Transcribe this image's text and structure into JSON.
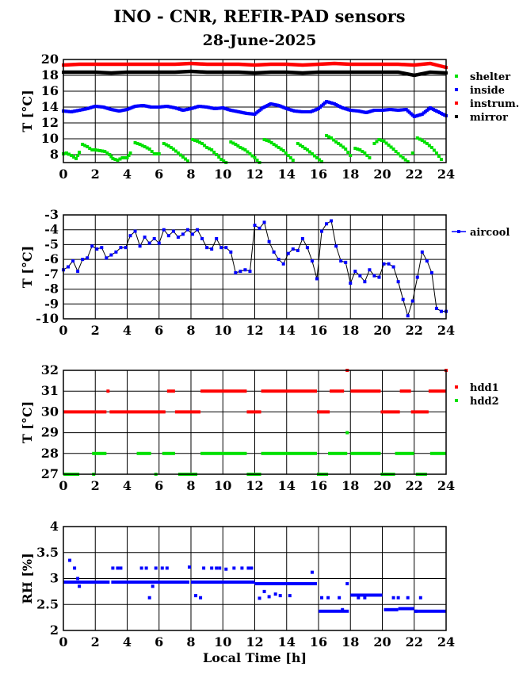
{
  "title": "INO - CNR, REFIR-PAD sensors",
  "subtitle": "28-June-2025",
  "chart_data": [
    {
      "type": "scatter",
      "ylabel": "T [°C]",
      "xlabel": "",
      "xlim": [
        0,
        24
      ],
      "ylim": [
        7,
        20
      ],
      "xticks": [
        0,
        2,
        4,
        6,
        8,
        10,
        12,
        14,
        16,
        18,
        20,
        22,
        24
      ],
      "yticks": [
        8,
        10,
        12,
        14,
        16,
        18,
        20
      ],
      "grid": true,
      "legend": "right",
      "series": [
        {
          "name": "shelter",
          "color": "#00e000",
          "marker": "square",
          "line": false,
          "x": [
            0,
            0.2,
            0.5,
            0.8,
            1.0,
            1.2,
            1.5,
            1.8,
            2.0,
            2.3,
            2.6,
            2.9,
            3.1,
            3.4,
            3.7,
            4.0,
            4.2,
            4.5,
            4.8,
            5.1,
            5.4,
            5.7,
            6.0,
            6.3,
            6.6,
            6.9,
            7.2,
            7.5,
            7.8,
            8.1,
            8.4,
            8.7,
            9.0,
            9.3,
            9.6,
            9.9,
            10.2,
            10.5,
            10.8,
            11.1,
            11.4,
            11.7,
            12.0,
            12.3,
            12.6,
            12.9,
            13.2,
            13.5,
            13.8,
            14.1,
            14.4,
            14.7,
            15.0,
            15.3,
            15.6,
            15.9,
            16.2,
            16.5,
            16.8,
            17.1,
            17.4,
            17.7,
            18.0,
            18.3,
            18.6,
            18.9,
            19.2,
            19.5,
            19.8,
            20.1,
            20.4,
            20.7,
            21.0,
            21.3,
            21.6,
            21.9,
            22.2,
            22.5,
            22.8,
            23.1,
            23.4,
            23.7
          ],
          "y": [
            8.1,
            8.2,
            7.9,
            7.5,
            8.3,
            9.3,
            9.0,
            8.6,
            8.6,
            8.5,
            8.4,
            8.0,
            7.5,
            7.3,
            7.6,
            7.6,
            8.2,
            9.5,
            9.3,
            9.0,
            8.7,
            8.1,
            8.1,
            9.4,
            9.1,
            8.7,
            8.2,
            7.7,
            7.2,
            9.9,
            9.7,
            9.4,
            8.9,
            8.6,
            8.0,
            7.4,
            7.0,
            9.6,
            9.3,
            8.9,
            8.6,
            8.1,
            7.6,
            7.0,
            9.9,
            9.7,
            9.3,
            8.9,
            8.5,
            7.9,
            7.3,
            9.4,
            9.0,
            8.6,
            8.1,
            7.6,
            7.1,
            10.4,
            10.1,
            9.6,
            9.2,
            8.7,
            7.9,
            8.8,
            8.6,
            8.2,
            7.6,
            9.4,
            9.9,
            9.7,
            9.2,
            8.7,
            8.1,
            7.6,
            7.1,
            8.2,
            10.1,
            9.8,
            9.4,
            8.9,
            8.2,
            7.4
          ]
        },
        {
          "name": "inside",
          "color": "#0000ff",
          "marker": "square",
          "line": false,
          "x": [
            0,
            0.5,
            1.0,
            1.5,
            2.0,
            2.5,
            3.0,
            3.5,
            4.0,
            4.5,
            5.0,
            5.5,
            6.0,
            6.5,
            7.0,
            7.5,
            8.0,
            8.5,
            9.0,
            9.5,
            10.0,
            10.5,
            11.0,
            11.5,
            12.0,
            12.5,
            13.0,
            13.5,
            14.0,
            14.5,
            15.0,
            15.5,
            16.0,
            16.5,
            17.0,
            17.5,
            18.0,
            18.5,
            19.0,
            19.5,
            20.0,
            20.5,
            21.0,
            21.5,
            22.0,
            22.5,
            23.0,
            23.5,
            24.0
          ],
          "y": [
            13.5,
            13.4,
            13.6,
            13.8,
            14.1,
            14.0,
            13.7,
            13.5,
            13.7,
            14.1,
            14.2,
            14.0,
            14.0,
            14.1,
            13.9,
            13.6,
            13.8,
            14.1,
            14.0,
            13.8,
            13.9,
            13.6,
            13.4,
            13.2,
            13.1,
            13.9,
            14.4,
            14.2,
            13.8,
            13.5,
            13.4,
            13.4,
            13.8,
            14.7,
            14.4,
            13.9,
            13.6,
            13.5,
            13.3,
            13.6,
            13.6,
            13.7,
            13.6,
            13.7,
            12.8,
            13.1,
            13.9,
            13.4,
            12.9
          ]
        },
        {
          "name": "instrum.",
          "color": "#ff0000",
          "marker": "square",
          "line": false,
          "x": [
            0,
            1,
            2,
            3,
            4,
            5,
            6,
            7,
            8,
            9,
            10,
            11,
            12,
            13,
            14,
            15,
            16,
            17,
            18,
            19,
            20,
            21,
            22,
            23,
            24
          ],
          "y": [
            19.3,
            19.4,
            19.4,
            19.4,
            19.4,
            19.4,
            19.4,
            19.4,
            19.5,
            19.4,
            19.4,
            19.4,
            19.3,
            19.4,
            19.4,
            19.3,
            19.4,
            19.5,
            19.4,
            19.4,
            19.4,
            19.4,
            19.3,
            19.5,
            19.0
          ]
        },
        {
          "name": "mirror",
          "color": "#000000",
          "marker": "square",
          "line": false,
          "x": [
            0,
            1,
            2,
            3,
            4,
            5,
            6,
            7,
            8,
            9,
            10,
            11,
            12,
            13,
            14,
            15,
            16,
            17,
            18,
            19,
            20,
            21,
            22,
            23,
            24
          ],
          "y": [
            18.4,
            18.4,
            18.4,
            18.3,
            18.4,
            18.4,
            18.4,
            18.4,
            18.5,
            18.4,
            18.4,
            18.4,
            18.3,
            18.4,
            18.4,
            18.3,
            18.4,
            18.4,
            18.4,
            18.4,
            18.4,
            18.4,
            18.0,
            18.4,
            18.3
          ]
        }
      ]
    },
    {
      "type": "line",
      "ylabel": "T [°C]",
      "xlabel": "",
      "xlim": [
        0,
        24
      ],
      "ylim": [
        -10,
        -3
      ],
      "xticks": [
        0,
        2,
        4,
        6,
        8,
        10,
        12,
        14,
        16,
        18,
        20,
        22,
        24
      ],
      "yticks": [
        -10,
        -9,
        -8,
        -7,
        -6,
        -5,
        -4,
        -3
      ],
      "grid": true,
      "legend": "right",
      "series": [
        {
          "name": "aircool",
          "color": "#0000ff",
          "marker": "square",
          "line": true,
          "x": [
            0,
            0.3,
            0.6,
            0.9,
            1.2,
            1.5,
            1.8,
            2.1,
            2.4,
            2.7,
            3.0,
            3.3,
            3.6,
            3.9,
            4.2,
            4.5,
            4.8,
            5.1,
            5.4,
            5.7,
            6.0,
            6.3,
            6.6,
            6.9,
            7.2,
            7.5,
            7.8,
            8.1,
            8.4,
            8.7,
            9.0,
            9.3,
            9.6,
            9.9,
            10.2,
            10.5,
            10.8,
            11.1,
            11.4,
            11.7,
            12.0,
            12.3,
            12.6,
            12.9,
            13.2,
            13.5,
            13.8,
            14.1,
            14.4,
            14.7,
            15.0,
            15.3,
            15.6,
            15.9,
            16.2,
            16.5,
            16.8,
            17.1,
            17.4,
            17.7,
            18.0,
            18.3,
            18.6,
            18.9,
            19.2,
            19.5,
            19.8,
            20.1,
            20.4,
            20.7,
            21.0,
            21.3,
            21.6,
            21.9,
            22.2,
            22.5,
            22.8,
            23.1,
            23.4,
            23.7,
            24.0
          ],
          "y": [
            -6.7,
            -6.5,
            -6.1,
            -6.8,
            -6.0,
            -5.9,
            -5.1,
            -5.3,
            -5.2,
            -5.9,
            -5.7,
            -5.5,
            -5.2,
            -5.2,
            -4.4,
            -4.1,
            -5.1,
            -4.5,
            -4.9,
            -4.6,
            -4.9,
            -4.0,
            -4.4,
            -4.1,
            -4.5,
            -4.3,
            -4.0,
            -4.3,
            -4.0,
            -4.6,
            -5.2,
            -5.3,
            -4.6,
            -5.2,
            -5.2,
            -5.5,
            -6.9,
            -6.8,
            -6.7,
            -6.8,
            -3.7,
            -3.9,
            -3.5,
            -4.8,
            -5.5,
            -6.0,
            -6.3,
            -5.6,
            -5.3,
            -5.4,
            -4.6,
            -5.2,
            -6.1,
            -7.3,
            -4.1,
            -3.6,
            -3.4,
            -5.1,
            -6.1,
            -6.2,
            -7.6,
            -6.8,
            -7.1,
            -7.5,
            -6.7,
            -7.1,
            -7.2,
            -6.3,
            -6.3,
            -6.5,
            -7.5,
            -8.7,
            -9.8,
            -8.8,
            -7.2,
            -5.5,
            -6.1,
            -6.9,
            -9.3,
            -9.5,
            -9.5
          ]
        }
      ]
    },
    {
      "type": "scatter",
      "ylabel": "T [°C]",
      "xlabel": "",
      "xlim": [
        0,
        24
      ],
      "ylim": [
        27,
        32
      ],
      "xticks": [
        0,
        2,
        4,
        6,
        8,
        10,
        12,
        14,
        16,
        18,
        20,
        22,
        24
      ],
      "yticks": [
        27,
        28,
        29,
        30,
        31,
        32
      ],
      "grid": true,
      "legend": "right",
      "series": [
        {
          "name": "hdd1",
          "color": "#ff0000",
          "marker": "square",
          "line": false,
          "segments": [
            [
              0,
              2.7,
              30
            ],
            [
              2.9,
              6.4,
              30
            ],
            [
              6.5,
              7.0,
              31
            ],
            [
              7.0,
              8.6,
              30
            ],
            [
              8.6,
              11.5,
              31
            ],
            [
              11.5,
              12.4,
              30
            ],
            [
              12.4,
              15.9,
              31
            ],
            [
              15.9,
              16.7,
              30
            ],
            [
              16.7,
              17.6,
              31
            ],
            [
              18.0,
              19.9,
              31
            ],
            [
              19.9,
              21.1,
              30
            ],
            [
              21.1,
              21.8,
              31
            ],
            [
              21.8,
              22.9,
              30
            ],
            [
              22.9,
              24.0,
              31
            ]
          ],
          "points": [
            [
              2.8,
              31
            ],
            [
              17.8,
              32
            ],
            [
              24.0,
              32
            ]
          ]
        },
        {
          "name": "hdd2",
          "color": "#00e000",
          "marker": "square",
          "line": false,
          "segments": [
            [
              0,
              1.0,
              27
            ],
            [
              1.8,
              2.7,
              28
            ],
            [
              4.6,
              5.5,
              28
            ],
            [
              6.2,
              7.0,
              28
            ],
            [
              7.2,
              8.4,
              27
            ],
            [
              8.6,
              11.5,
              28
            ],
            [
              11.5,
              12.4,
              27
            ],
            [
              12.4,
              15.9,
              28
            ],
            [
              15.9,
              16.6,
              27
            ],
            [
              16.6,
              17.8,
              28
            ],
            [
              18.0,
              19.9,
              28
            ],
            [
              19.9,
              20.8,
              27
            ],
            [
              20.8,
              22.0,
              28
            ],
            [
              22.1,
              22.8,
              27
            ],
            [
              23.0,
              24.0,
              28
            ]
          ],
          "points": [
            [
              17.8,
              29
            ],
            [
              1.9,
              27
            ],
            [
              5.8,
              27
            ]
          ]
        }
      ]
    },
    {
      "type": "scatter",
      "ylabel": "RH [%]",
      "xlabel": "Local Time [h]",
      "xlim": [
        0,
        24
      ],
      "ylim": [
        2,
        4
      ],
      "xticks": [
        0,
        2,
        4,
        6,
        8,
        10,
        12,
        14,
        16,
        18,
        20,
        22,
        24
      ],
      "yticks": [
        2,
        2.5,
        3,
        3.5,
        4
      ],
      "yticklabels": [
        "2",
        "2.5",
        "3",
        "3.5",
        "4"
      ],
      "grid": true,
      "legend": "none",
      "series": [
        {
          "name": "",
          "color": "#0000ff",
          "marker": "square",
          "line": false,
          "segments": [
            [
              0,
              2.9,
              2.93
            ],
            [
              3.0,
              7.9,
              2.93
            ],
            [
              8.0,
              12.0,
              2.93
            ],
            [
              12.0,
              15.9,
              2.9
            ],
            [
              16.0,
              17.9,
              2.37
            ],
            [
              18.0,
              20.0,
              2.68
            ],
            [
              20.1,
              21.0,
              2.4
            ],
            [
              21.0,
              22.0,
              2.42
            ],
            [
              22.0,
              24.0,
              2.37
            ]
          ],
          "points": [
            [
              0.4,
              3.35
            ],
            [
              0.7,
              3.2
            ],
            [
              0.9,
              3.0
            ],
            [
              1.0,
              2.85
            ],
            [
              3.1,
              3.2
            ],
            [
              3.4,
              3.2
            ],
            [
              3.6,
              3.2
            ],
            [
              4.9,
              3.2
            ],
            [
              5.2,
              3.2
            ],
            [
              5.4,
              2.63
            ],
            [
              5.6,
              2.85
            ],
            [
              5.8,
              3.2
            ],
            [
              6.2,
              3.2
            ],
            [
              6.5,
              3.2
            ],
            [
              7.9,
              3.22
            ],
            [
              8.3,
              2.67
            ],
            [
              8.6,
              2.63
            ],
            [
              8.8,
              3.2
            ],
            [
              9.3,
              3.2
            ],
            [
              9.6,
              3.2
            ],
            [
              9.8,
              3.2
            ],
            [
              10.2,
              3.18
            ],
            [
              10.7,
              3.2
            ],
            [
              11.2,
              3.2
            ],
            [
              11.6,
              3.2
            ],
            [
              11.8,
              3.2
            ],
            [
              12.3,
              2.62
            ],
            [
              12.6,
              2.75
            ],
            [
              12.9,
              2.65
            ],
            [
              13.3,
              2.7
            ],
            [
              13.6,
              2.67
            ],
            [
              14.2,
              2.67
            ],
            [
              15.6,
              3.12
            ],
            [
              16.2,
              2.63
            ],
            [
              16.6,
              2.63
            ],
            [
              17.3,
              2.63
            ],
            [
              17.5,
              2.4
            ],
            [
              17.8,
              2.9
            ],
            [
              18.5,
              2.63
            ],
            [
              18.9,
              2.63
            ],
            [
              20.7,
              2.63
            ],
            [
              21.0,
              2.63
            ],
            [
              21.6,
              2.63
            ],
            [
              22.4,
              2.63
            ],
            [
              22.1,
              2.37
            ]
          ]
        }
      ]
    }
  ]
}
